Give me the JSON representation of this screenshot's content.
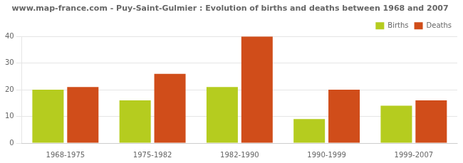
{
  "chart_data": {
    "type": "bar",
    "title": "www.map-france.com - Puy-Saint-Gulmier : Evolution of births and deaths between 1968 and 2007",
    "categories": [
      "1968-1975",
      "1975-1982",
      "1982-1990",
      "1990-1999",
      "1999-2007"
    ],
    "series": [
      {
        "name": "Births",
        "color": "#b5cc1f",
        "values": [
          20,
          16,
          21,
          9,
          14
        ]
      },
      {
        "name": "Deaths",
        "color": "#d04d1a",
        "values": [
          21,
          26,
          40,
          20,
          16
        ]
      }
    ],
    "ylim": [
      0,
      40
    ],
    "yticks": [
      0,
      10,
      20,
      30,
      40
    ],
    "grid": true,
    "legend": "upper right"
  }
}
